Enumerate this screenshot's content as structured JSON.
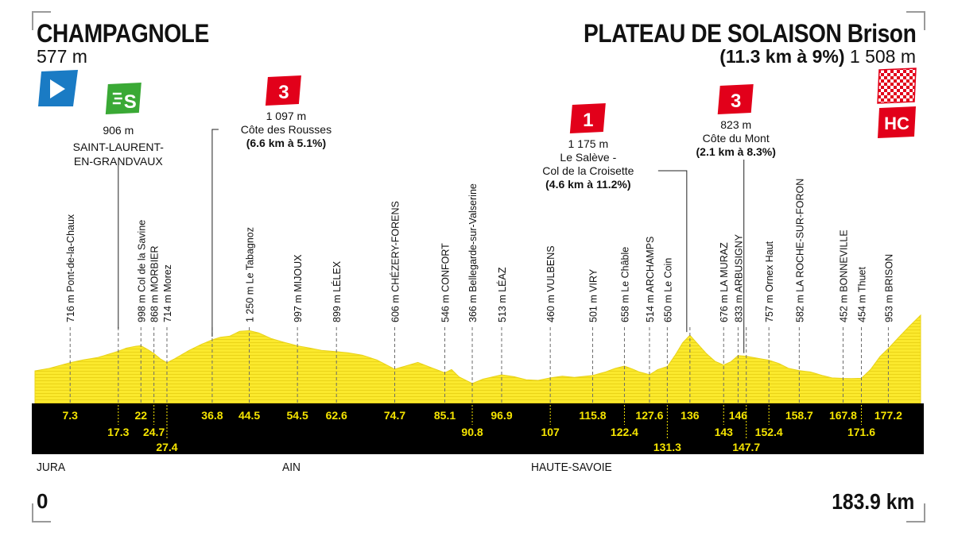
{
  "start": {
    "name": "CHAMPAGNOLE",
    "altitude": "577 m"
  },
  "finish": {
    "name": "PLATEAU DE SOLAISON Brison",
    "climb": "(11.3 km à 9%)",
    "altitude": "1 508 m"
  },
  "distance": {
    "start": "0",
    "end": "183.9 km"
  },
  "regions": [
    "JURA",
    "AIN",
    "HAUTE-SAVOIE"
  ],
  "colors": {
    "profile_fill": "#fbe92d",
    "band": "#000000",
    "km_text": "#f5e400",
    "climb_badge": "#e2001a",
    "sprint_badge": "#3aa935",
    "start_flag": "#1a7bc4"
  },
  "markers": [
    {
      "type": "start",
      "icon": "start-flag-icon",
      "km": 0
    },
    {
      "type": "sprint",
      "icon": "sprint-icon",
      "label": "S",
      "km": 17.3,
      "altitude": "906 m",
      "name": "SAINT-LAURENT-\nEN-GRANDVAUX"
    },
    {
      "type": "climb",
      "category": "3",
      "km": 36.8,
      "altitude": "1 097 m",
      "name": "Côte des Rousses",
      "stats": "(6.6 km à 5.1%)"
    },
    {
      "type": "climb",
      "category": "1",
      "km": 136,
      "altitude": "1 175 m",
      "name": "Le Salève -\nCol de la Croisette",
      "stats": "(4.6 km à 11.2%)"
    },
    {
      "type": "climb",
      "category": "3",
      "km": 147.7,
      "altitude": "823 m",
      "name": "Côte du Mont",
      "stats": "(2.1 km à 8.3%)"
    },
    {
      "type": "finish",
      "category": "HC",
      "icon": "finish-flag-icon",
      "km": 183.9
    }
  ],
  "chart_data": {
    "type": "area",
    "xlim": [
      0,
      183.9
    ],
    "ylim": [
      0,
      1600
    ],
    "profile": [
      {
        "x": 0,
        "y": 577
      },
      {
        "x": 3,
        "y": 620
      },
      {
        "x": 7.3,
        "y": 716
      },
      {
        "x": 10,
        "y": 760
      },
      {
        "x": 13,
        "y": 800
      },
      {
        "x": 17.3,
        "y": 906
      },
      {
        "x": 19,
        "y": 960
      },
      {
        "x": 21,
        "y": 990
      },
      {
        "x": 22,
        "y": 998
      },
      {
        "x": 23.5,
        "y": 930
      },
      {
        "x": 24.7,
        "y": 868
      },
      {
        "x": 26,
        "y": 780
      },
      {
        "x": 27.4,
        "y": 714
      },
      {
        "x": 29,
        "y": 780
      },
      {
        "x": 32,
        "y": 920
      },
      {
        "x": 34.5,
        "y": 1020
      },
      {
        "x": 36.8,
        "y": 1097
      },
      {
        "x": 38.5,
        "y": 1140
      },
      {
        "x": 40.5,
        "y": 1160
      },
      {
        "x": 42.5,
        "y": 1240
      },
      {
        "x": 44.5,
        "y": 1250
      },
      {
        "x": 46.5,
        "y": 1210
      },
      {
        "x": 49,
        "y": 1120
      },
      {
        "x": 51.5,
        "y": 1060
      },
      {
        "x": 54.5,
        "y": 997
      },
      {
        "x": 57,
        "y": 960
      },
      {
        "x": 59.5,
        "y": 920
      },
      {
        "x": 62.6,
        "y": 899
      },
      {
        "x": 65,
        "y": 880
      },
      {
        "x": 68,
        "y": 840
      },
      {
        "x": 71,
        "y": 760
      },
      {
        "x": 74.7,
        "y": 606
      },
      {
        "x": 77,
        "y": 660
      },
      {
        "x": 79.5,
        "y": 720
      },
      {
        "x": 82,
        "y": 640
      },
      {
        "x": 85.1,
        "y": 546
      },
      {
        "x": 86.5,
        "y": 600
      },
      {
        "x": 88,
        "y": 480
      },
      {
        "x": 90.8,
        "y": 366
      },
      {
        "x": 93,
        "y": 440
      },
      {
        "x": 96.9,
        "y": 513
      },
      {
        "x": 99.5,
        "y": 480
      },
      {
        "x": 102,
        "y": 430
      },
      {
        "x": 104.5,
        "y": 420
      },
      {
        "x": 107,
        "y": 460
      },
      {
        "x": 109.5,
        "y": 490
      },
      {
        "x": 112,
        "y": 470
      },
      {
        "x": 115.8,
        "y": 501
      },
      {
        "x": 118.5,
        "y": 560
      },
      {
        "x": 120.5,
        "y": 620
      },
      {
        "x": 122.4,
        "y": 658
      },
      {
        "x": 124,
        "y": 610
      },
      {
        "x": 125.5,
        "y": 560
      },
      {
        "x": 127.6,
        "y": 514
      },
      {
        "x": 129.3,
        "y": 600
      },
      {
        "x": 131.3,
        "y": 650
      },
      {
        "x": 133,
        "y": 850
      },
      {
        "x": 134.5,
        "y": 1050
      },
      {
        "x": 136,
        "y": 1175
      },
      {
        "x": 137.5,
        "y": 1040
      },
      {
        "x": 139.5,
        "y": 860
      },
      {
        "x": 141.2,
        "y": 740
      },
      {
        "x": 143,
        "y": 676
      },
      {
        "x": 144.5,
        "y": 730
      },
      {
        "x": 146,
        "y": 833
      },
      {
        "x": 147.7,
        "y": 823
      },
      {
        "x": 150,
        "y": 790
      },
      {
        "x": 152.4,
        "y": 757
      },
      {
        "x": 154.5,
        "y": 700
      },
      {
        "x": 156.5,
        "y": 620
      },
      {
        "x": 158.7,
        "y": 582
      },
      {
        "x": 161,
        "y": 560
      },
      {
        "x": 163.5,
        "y": 500
      },
      {
        "x": 165.5,
        "y": 460
      },
      {
        "x": 167.8,
        "y": 452
      },
      {
        "x": 169.5,
        "y": 450
      },
      {
        "x": 171.6,
        "y": 454
      },
      {
        "x": 173.5,
        "y": 600
      },
      {
        "x": 175.5,
        "y": 820
      },
      {
        "x": 177.2,
        "y": 953
      },
      {
        "x": 179.5,
        "y": 1150
      },
      {
        "x": 181.5,
        "y": 1320
      },
      {
        "x": 183.9,
        "y": 1508
      }
    ],
    "points": [
      {
        "km": "7.3",
        "x": 7.3,
        "label": "716 m Pont-de-la-Chaux",
        "row": 0
      },
      {
        "km": "17.3",
        "x": 17.3,
        "label": "",
        "row": 1
      },
      {
        "km": "22",
        "x": 22,
        "label": "998 m Col de la Savine",
        "row": 0
      },
      {
        "km": "24.7",
        "x": 24.7,
        "label": "868 m MORBIER",
        "row": 1
      },
      {
        "km": "27.4",
        "x": 27.4,
        "label": "714 m Morez",
        "row": 2
      },
      {
        "km": "36.8",
        "x": 36.8,
        "label": "",
        "row": 0
      },
      {
        "km": "44.5",
        "x": 44.5,
        "label": "1 250 m Le Tabagnoz",
        "row": 0
      },
      {
        "km": "54.5",
        "x": 54.5,
        "label": "997 m MIJOUX",
        "row": 0
      },
      {
        "km": "62.6",
        "x": 62.6,
        "label": "899 m LÉLEX",
        "row": 0
      },
      {
        "km": "74.7",
        "x": 74.7,
        "label": "606 m CHÉZERY-FORENS",
        "row": 0
      },
      {
        "km": "85.1",
        "x": 85.1,
        "label": "546 m CONFORT",
        "row": 0
      },
      {
        "km": "90.8",
        "x": 90.8,
        "label": "366 m Bellegarde-sur-Valserine",
        "row": 1
      },
      {
        "km": "96.9",
        "x": 96.9,
        "label": "513 m LÉAZ",
        "row": 0
      },
      {
        "km": "107",
        "x": 107,
        "label": "460 m VULBENS",
        "row": 1
      },
      {
        "km": "115.8",
        "x": 115.8,
        "label": "501 m VIRY",
        "row": 0
      },
      {
        "km": "122.4",
        "x": 122.4,
        "label": "658 m Le Châble",
        "row": 1
      },
      {
        "km": "127.6",
        "x": 127.6,
        "label": "514 m ARCHAMPS",
        "row": 0
      },
      {
        "km": "131.3",
        "x": 131.3,
        "label": "650 m Le Coin",
        "row": 2
      },
      {
        "km": "136",
        "x": 136,
        "label": "",
        "row": 0
      },
      {
        "km": "143",
        "x": 143,
        "label": "676 m LA MURAZ",
        "row": 1
      },
      {
        "km": "146",
        "x": 146,
        "label": "833 m ARBUSIGNY",
        "row": 0
      },
      {
        "km": "147.7",
        "x": 147.7,
        "label": "",
        "row": 2
      },
      {
        "km": "152.4",
        "x": 152.4,
        "label": "757 m Ornex Haut",
        "row": 1
      },
      {
        "km": "158.7",
        "x": 158.7,
        "label": "582 m LA ROCHE-SUR-FORON",
        "row": 0
      },
      {
        "km": "167.8",
        "x": 167.8,
        "label": "452 m BONNEVILLE",
        "row": 0
      },
      {
        "km": "171.6",
        "x": 171.6,
        "label": "454 m Thuet",
        "row": 1
      },
      {
        "km": "177.2",
        "x": 177.2,
        "label": "953 m BRISON",
        "row": 0
      }
    ]
  }
}
